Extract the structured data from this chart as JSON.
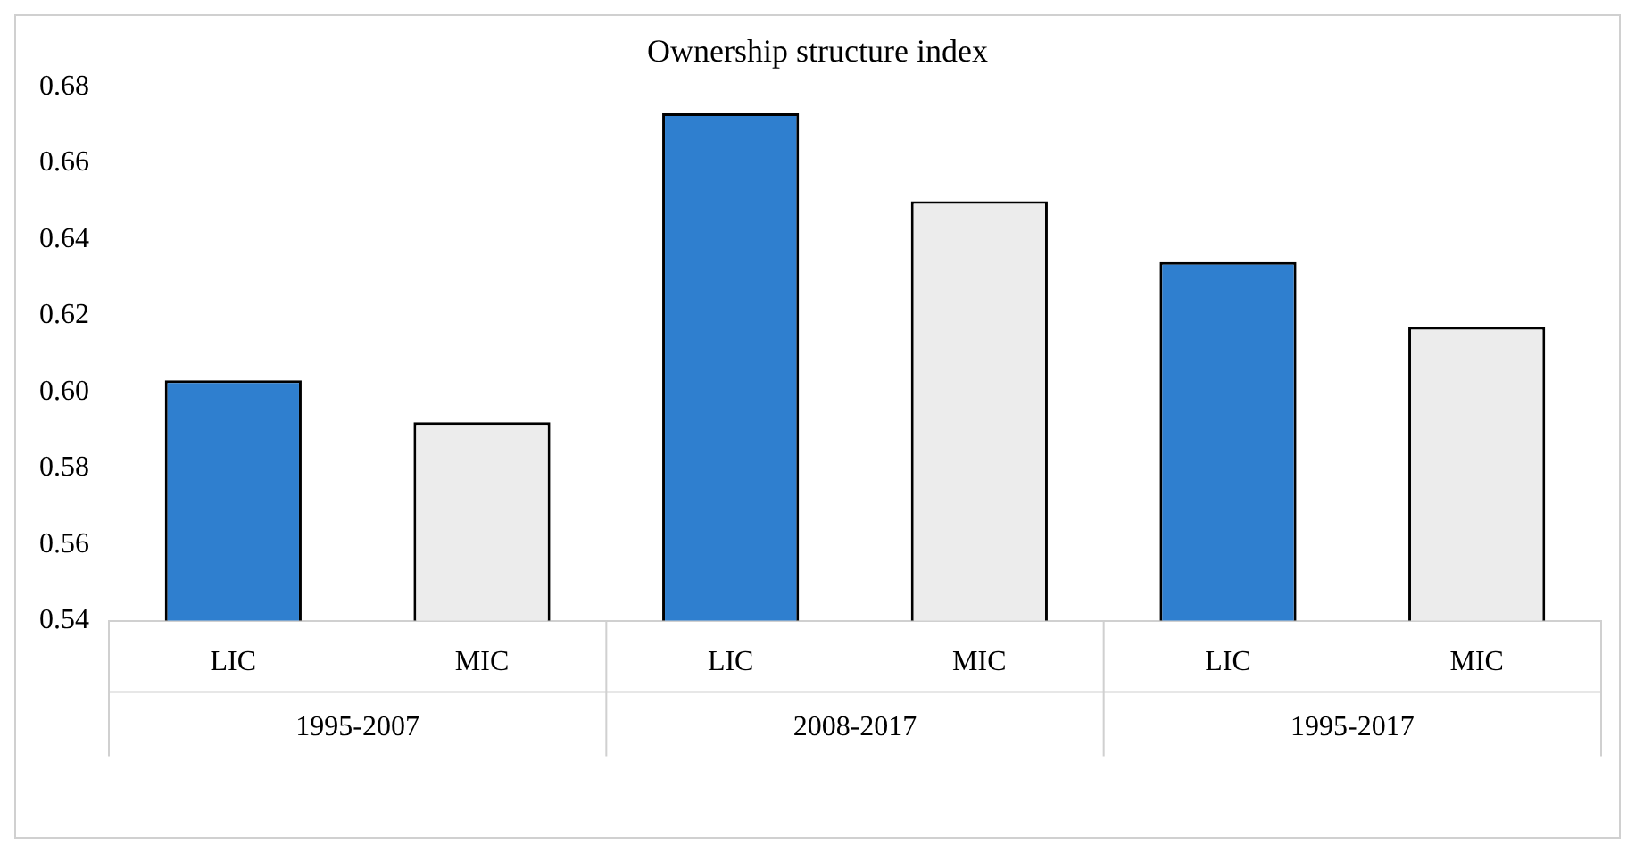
{
  "chart_data": {
    "type": "bar",
    "title": "Ownership structure index",
    "categories": [
      "LIC",
      "MIC",
      "LIC",
      "MIC",
      "LIC",
      "MIC"
    ],
    "values": [
      0.603,
      0.592,
      0.673,
      0.65,
      0.634,
      0.617
    ],
    "colors": [
      "#2f7fcf",
      "#ececec",
      "#2f7fcf",
      "#ececec",
      "#2f7fcf",
      "#ececec"
    ],
    "ylim": [
      0.54,
      0.68
    ],
    "yticks": [
      {
        "value": 0.54,
        "label": "0.54"
      },
      {
        "value": 0.56,
        "label": "0.56"
      },
      {
        "value": 0.58,
        "label": "0.58"
      },
      {
        "value": 0.6,
        "label": "0.60"
      },
      {
        "value": 0.62,
        "label": "0.62"
      },
      {
        "value": 0.64,
        "label": "0.64"
      },
      {
        "value": 0.66,
        "label": "0.66"
      },
      {
        "value": 0.68,
        "label": "0.68"
      }
    ],
    "annotations": [
      "1995-2007",
      "2008-2017",
      "1995-2017"
    ],
    "grid": false,
    "legend": false
  }
}
